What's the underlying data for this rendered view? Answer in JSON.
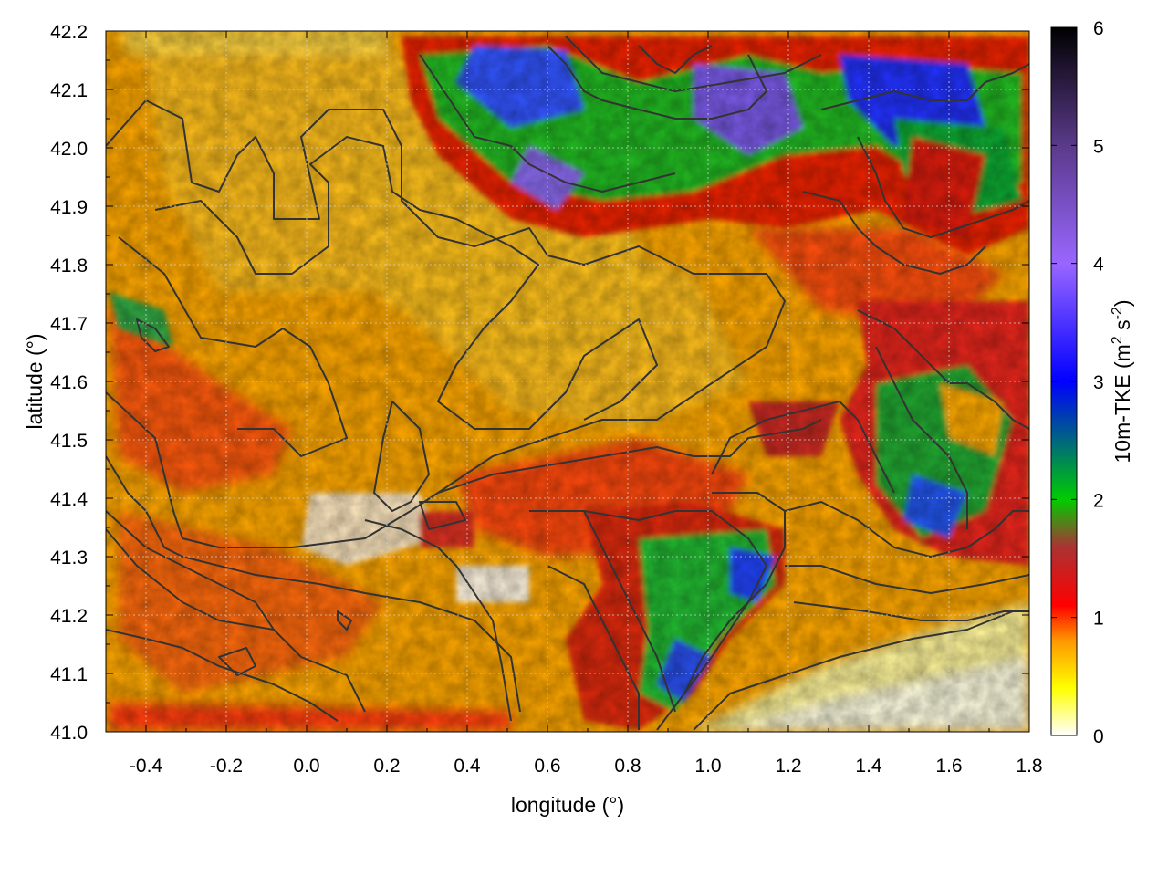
{
  "chart_data": {
    "type": "heatmap",
    "title": "",
    "xlabel": "longitude (°)",
    "ylabel": "latitude (°)",
    "xlim": [
      -0.5,
      1.8
    ],
    "ylim": [
      41.0,
      42.2
    ],
    "x_ticks": [
      "-0.4",
      "-0.2",
      "0.0",
      "0.2",
      "0.4",
      "0.6",
      "0.8",
      "1.0",
      "1.2",
      "1.4",
      "1.6",
      "1.8"
    ],
    "x_tick_values": [
      -0.4,
      -0.2,
      0.0,
      0.2,
      0.4,
      0.6,
      0.8,
      1.0,
      1.2,
      1.4,
      1.6,
      1.8
    ],
    "y_ticks": [
      "41.0",
      "41.1",
      "41.2",
      "41.3",
      "41.4",
      "41.5",
      "41.6",
      "41.7",
      "41.8",
      "41.9",
      "42.0",
      "42.1",
      "42.2"
    ],
    "y_tick_values": [
      41.0,
      41.1,
      41.2,
      41.3,
      41.4,
      41.5,
      41.6,
      41.7,
      41.8,
      41.9,
      42.0,
      42.1,
      42.2
    ],
    "grid": true,
    "colorbar": {
      "label": "10m-TKE (m² s⁻²)",
      "range": [
        0,
        6
      ],
      "ticks": [
        "0",
        "1",
        "2",
        "3",
        "4",
        "5",
        "6"
      ],
      "tick_values": [
        0,
        1,
        2,
        3,
        4,
        5,
        6
      ],
      "stops": [
        {
          "value": 0.0,
          "color": "#ffffff"
        },
        {
          "value": 0.4,
          "color": "#ffff00"
        },
        {
          "value": 0.8,
          "color": "#ff9900"
        },
        {
          "value": 1.1,
          "color": "#ff0000"
        },
        {
          "value": 1.6,
          "color": "#aa3333"
        },
        {
          "value": 2.0,
          "color": "#00cc00"
        },
        {
          "value": 3.0,
          "color": "#0000ff"
        },
        {
          "value": 4.0,
          "color": "#9966ff"
        },
        {
          "value": 5.0,
          "color": "#5a3a8a"
        },
        {
          "value": 6.0,
          "color": "#000000"
        }
      ]
    },
    "field_features": [
      {
        "name": "background",
        "value": 0.75
      },
      {
        "name": "NE turbulent region",
        "lon_range": [
          0.3,
          1.8
        ],
        "lat_range": [
          41.85,
          42.2
        ],
        "value_range": [
          1.0,
          4.5
        ]
      },
      {
        "name": "E turbulent region",
        "lon_range": [
          1.3,
          1.8
        ],
        "lat_range": [
          41.3,
          41.75
        ],
        "value_range": [
          1.0,
          3.0
        ]
      },
      {
        "name": "central coast turbulent region",
        "lon_range": [
          0.7,
          1.15
        ],
        "lat_range": [
          41.05,
          41.35
        ],
        "value_range": [
          1.0,
          3.5
        ]
      },
      {
        "name": "calm sea SE",
        "lon_range": [
          1.0,
          1.8
        ],
        "lat_range": [
          41.0,
          41.2
        ],
        "value_range": [
          0.0,
          0.3
        ]
      }
    ],
    "contours": "terrain elevation contours (dark gray lines)"
  }
}
